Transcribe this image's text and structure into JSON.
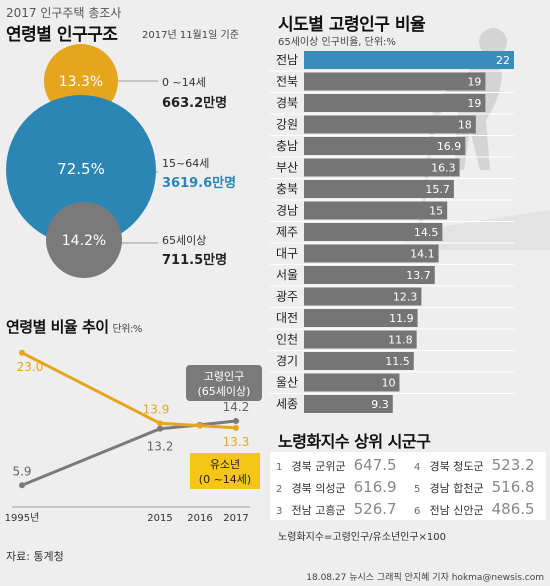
{
  "header": {
    "survey": "2017 인구주택 총조사",
    "title": "연령별 인구구조",
    "date": "2017년 11월1일 기준"
  },
  "colors": {
    "young": "#e5a61e",
    "working": "#2b86b4",
    "old": "#7a7a7a",
    "bar": "#757575",
    "bar_highlight": "#3a8dbb"
  },
  "structure": {
    "groups": [
      {
        "pct": "13.3%",
        "age": "0 ~14세",
        "pop": "663.2만명"
      },
      {
        "pct": "72.5%",
        "age": "15~64세",
        "pop": "3619.6만명"
      },
      {
        "pct": "14.2%",
        "age": "65세이상",
        "pop": "711.5만명"
      }
    ]
  },
  "chart_data": [
    {
      "type": "line",
      "title": "연령별 비율 추이",
      "unit": "단위:%",
      "x": [
        "1995년",
        "2015",
        "2016",
        "2017"
      ],
      "series": [
        {
          "name": "고령인구 (65세이상)",
          "values": [
            5.9,
            13.2,
            13.7,
            14.2
          ]
        },
        {
          "name": "유소년 (0 ~14세)",
          "values": [
            23.0,
            13.9,
            13.6,
            13.3
          ]
        }
      ],
      "point_labels": {
        "old": [
          "5.9",
          "13.2",
          "14.2"
        ],
        "young": [
          "23.0",
          "13.9",
          "13.3"
        ]
      },
      "legend": {
        "old_line1": "고령인구",
        "old_line2": "(65세이상)",
        "young_line1": "유소년",
        "young_line2": "(0 ~14세)"
      }
    },
    {
      "type": "bar",
      "title": "시도별 고령인구 비율",
      "subtitle": "65세이상 인구비율, 단위:%",
      "categories": [
        "전남",
        "전북",
        "경북",
        "강원",
        "충남",
        "부산",
        "충북",
        "경남",
        "제주",
        "대구",
        "서울",
        "광주",
        "대전",
        "인천",
        "경기",
        "울산",
        "세종"
      ],
      "values": [
        22,
        19,
        19,
        18,
        16.9,
        16.3,
        15.7,
        15,
        14.5,
        14.1,
        13.7,
        12.3,
        11.9,
        11.8,
        11.5,
        10,
        9.3
      ],
      "labels": [
        "22",
        "19",
        "19",
        "18",
        "16.9",
        "16.3",
        "15.7",
        "15",
        "14.5",
        "14.1",
        "13.7",
        "12.3",
        "11.9",
        "11.8",
        "11.5",
        "10",
        "9.3"
      ],
      "xlim": [
        0,
        22
      ]
    }
  ],
  "aging_index": {
    "title": "노령화지수 상위 시군구",
    "ranks": [
      {
        "n": "1",
        "region": "경북 군위군",
        "value": "647.5"
      },
      {
        "n": "2",
        "region": "경북 의성군",
        "value": "616.9"
      },
      {
        "n": "3",
        "region": "전남 고흥군",
        "value": "526.7"
      },
      {
        "n": "4",
        "region": "경북 청도군",
        "value": "523.2"
      },
      {
        "n": "5",
        "region": "경남 합천군",
        "value": "516.8"
      },
      {
        "n": "6",
        "region": "전남 신안군",
        "value": "486.5"
      }
    ],
    "formula": "노령화지수=고령인구/유소년인구×100"
  },
  "source": "자료: 통계청",
  "credit": "18.08.27 뉴시스 그래픽 안지혜 기자 hokma@newsis.com"
}
